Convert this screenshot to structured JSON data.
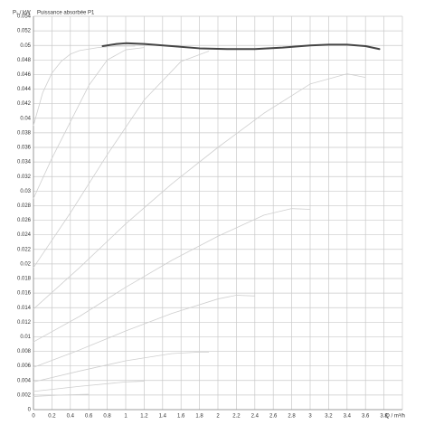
{
  "chart_data": {
    "type": "line",
    "title": "Puissance absorbée P1",
    "y_label": "P₁ / kW",
    "x_label": "Q / m³/h",
    "xlim": [
      0,
      4
    ],
    "ylim": [
      0,
      0.054
    ],
    "xticks": [
      0,
      0.2,
      0.4,
      0.6,
      0.8,
      1,
      1.2,
      1.4,
      1.6,
      1.8,
      2,
      2.2,
      2.4,
      2.6,
      2.8,
      3,
      3.2,
      3.4,
      3.6,
      3.8
    ],
    "yticks": [
      0,
      0.002,
      0.004,
      0.006,
      0.008,
      0.01,
      0.012,
      0.014,
      0.016,
      0.018,
      0.02,
      0.022,
      0.024,
      0.026,
      0.028,
      0.03,
      0.032,
      0.034,
      0.036,
      0.038,
      0.04,
      0.042,
      0.044,
      0.046,
      0.048,
      0.05,
      0.052,
      0.054
    ],
    "grid": true,
    "series": [
      {
        "color": "#cfcfcf",
        "width": 0.8,
        "x": [
          0,
          0.1,
          0.2,
          0.3,
          0.4,
          0.5,
          0.7,
          0.9,
          1.1
        ],
        "values": [
          0.039,
          0.0435,
          0.0462,
          0.0478,
          0.0488,
          0.0493,
          0.0497,
          0.0499,
          0.0499
        ]
      },
      {
        "color": "#cfcfcf",
        "width": 0.8,
        "x": [
          0,
          0.2,
          0.4,
          0.6,
          0.8,
          1.0,
          1.2
        ],
        "values": [
          0.029,
          0.0345,
          0.0395,
          0.0445,
          0.048,
          0.0494,
          0.0497
        ]
      },
      {
        "color": "#cfcfcf",
        "width": 0.8,
        "x": [
          0,
          0.4,
          0.8,
          1.2,
          1.6,
          1.9
        ],
        "values": [
          0.0195,
          0.027,
          0.035,
          0.0425,
          0.0478,
          0.0492
        ]
      },
      {
        "color": "#cfcfcf",
        "width": 0.8,
        "x": [
          0,
          0.5,
          1.0,
          1.5,
          2.0,
          2.5,
          3.0,
          3.4,
          3.6
        ],
        "values": [
          0.0138,
          0.0195,
          0.0255,
          0.031,
          0.036,
          0.0407,
          0.0447,
          0.0461,
          0.0456
        ]
      },
      {
        "color": "#cfcfcf",
        "width": 0.8,
        "x": [
          0,
          0.5,
          1.0,
          1.5,
          2.0,
          2.5,
          2.8,
          3.0
        ],
        "values": [
          0.0093,
          0.0128,
          0.0168,
          0.0205,
          0.0238,
          0.0267,
          0.0276,
          0.0275
        ]
      },
      {
        "color": "#cfcfcf",
        "width": 0.8,
        "x": [
          0,
          0.5,
          1.0,
          1.5,
          2.0,
          2.2,
          2.4
        ],
        "values": [
          0.0058,
          0.0082,
          0.0108,
          0.0132,
          0.0152,
          0.0157,
          0.0156
        ]
      },
      {
        "color": "#cfcfcf",
        "width": 0.8,
        "x": [
          0,
          0.5,
          1.0,
          1.5,
          1.8,
          1.9
        ],
        "values": [
          0.0038,
          0.0053,
          0.0067,
          0.0077,
          0.0079,
          0.0079
        ]
      },
      {
        "color": "#cfcfcf",
        "width": 0.8,
        "x": [
          0,
          0.5,
          1.0,
          1.2
        ],
        "values": [
          0.0025,
          0.0032,
          0.0038,
          0.0039
        ]
      },
      {
        "color": "#cfcfcf",
        "width": 0.8,
        "x": [
          0,
          0.3,
          0.6
        ],
        "values": [
          0.0018,
          0.002,
          0.0021
        ]
      },
      {
        "color": "#454545",
        "width": 2,
        "x": [
          0.75,
          0.9,
          1.0,
          1.2,
          1.5,
          1.8,
          2.1,
          2.4,
          2.7,
          3.0,
          3.2,
          3.4,
          3.6,
          3.75
        ],
        "values": [
          0.0499,
          0.0502,
          0.0503,
          0.0502,
          0.0499,
          0.0496,
          0.0495,
          0.0495,
          0.0497,
          0.05,
          0.0501,
          0.0501,
          0.0499,
          0.0495
        ]
      }
    ]
  }
}
